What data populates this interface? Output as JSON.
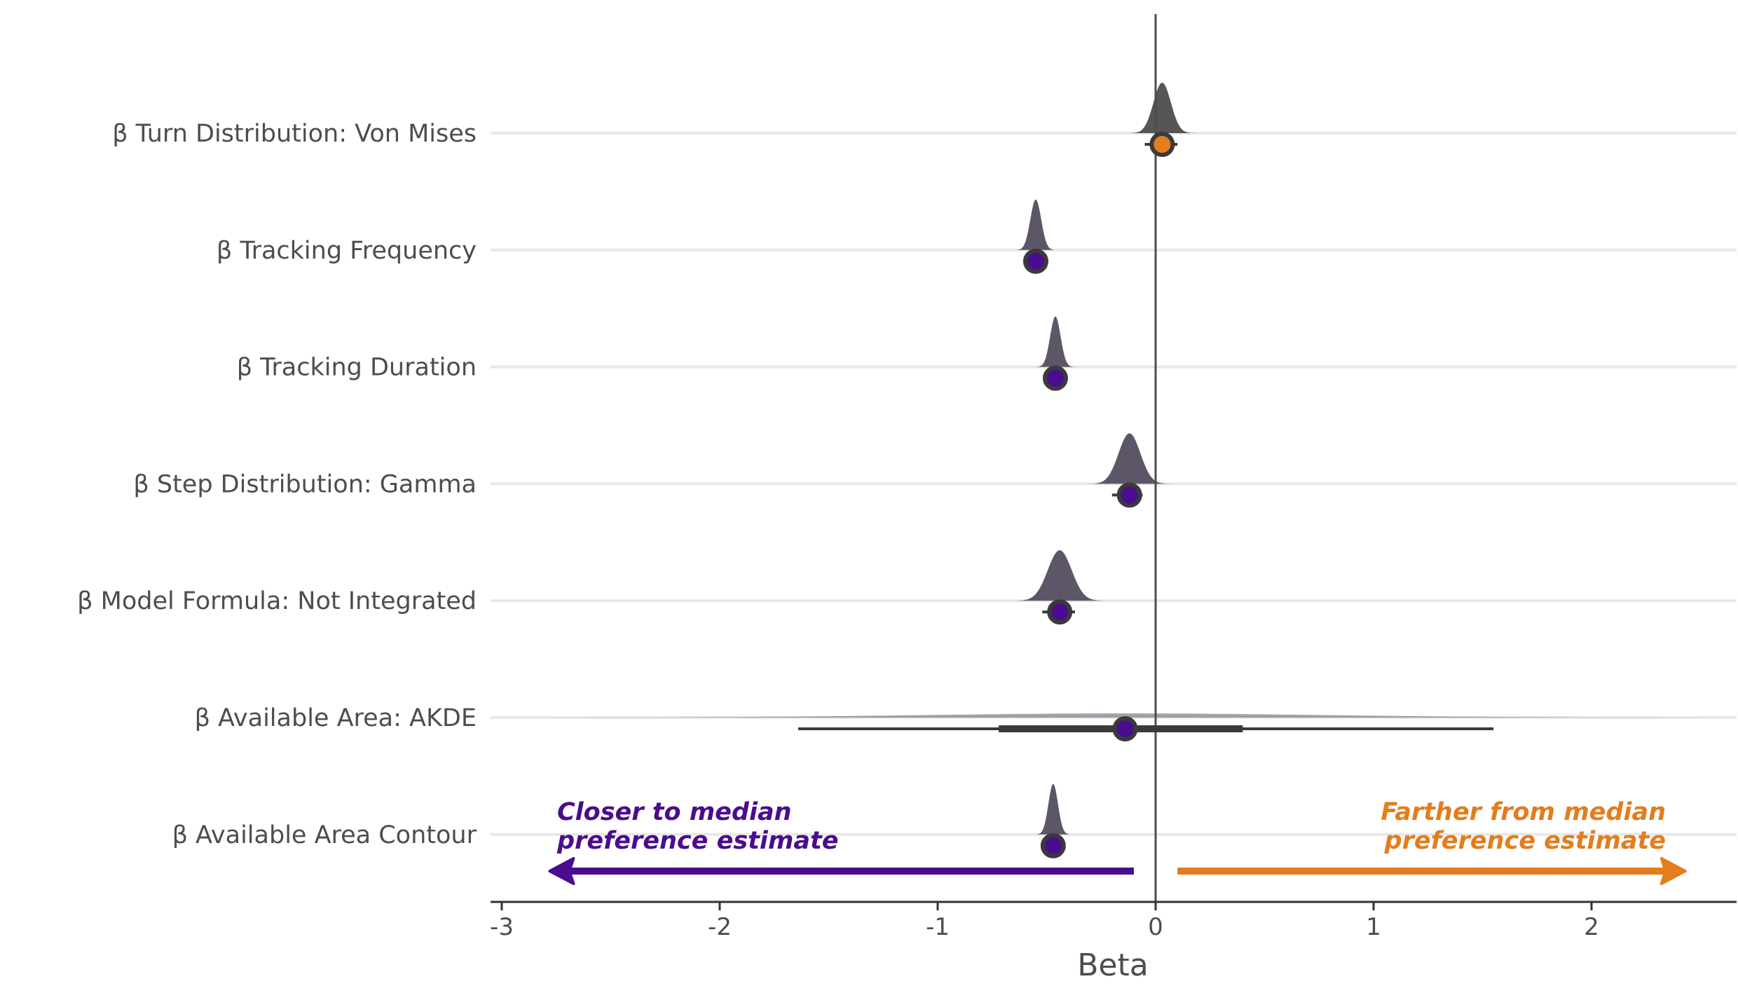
{
  "chart_data": {
    "type": "halfeye",
    "xlabel": "Beta",
    "xlim": [
      -3.03,
      2.7
    ],
    "x_ticks": [
      -3,
      -2,
      -1,
      0,
      1,
      2
    ],
    "x_tick_labels": [
      "-3",
      "-2",
      "-1",
      "0",
      "1",
      "2"
    ],
    "reference_line_x": 0,
    "grid": "horizontal",
    "colors": {
      "closer": "#4b0c8f",
      "farther": "#e37d1d",
      "density": "#5d5668",
      "density_alt": "#565656",
      "interval": "#3a3a3a",
      "text": "#4d4d4d",
      "grid": "#e8e8e8"
    },
    "series": [
      {
        "label": "β Turn Distribution: Von Mises",
        "median": 0.03,
        "ci66": [
          -0.02,
          0.07
        ],
        "ci95": [
          -0.05,
          0.1
        ],
        "density_sd": 0.04,
        "density_peak": 0.03,
        "direction": "farther"
      },
      {
        "label": "β Tracking Frequency",
        "median": -0.55,
        "ci66": [
          -0.57,
          -0.53
        ],
        "ci95": [
          -0.58,
          -0.52
        ],
        "density_sd": 0.025,
        "density_peak": -0.55,
        "direction": "closer"
      },
      {
        "label": "β Tracking Duration",
        "median": -0.46,
        "ci66": [
          -0.48,
          -0.44
        ],
        "ci95": [
          -0.49,
          -0.43
        ],
        "density_sd": 0.024,
        "density_peak": -0.46,
        "direction": "closer"
      },
      {
        "label": "β Step Distribution: Gamma",
        "median": -0.12,
        "ci66": [
          -0.16,
          -0.09
        ],
        "ci95": [
          -0.2,
          -0.06
        ],
        "density_sd": 0.05,
        "density_peak": -0.12,
        "direction": "closer"
      },
      {
        "label": "β Model Formula: Not Integrated",
        "median": -0.44,
        "ci66": [
          -0.48,
          -0.4
        ],
        "ci95": [
          -0.52,
          -0.37
        ],
        "density_sd": 0.055,
        "density_peak": -0.44,
        "direction": "closer"
      },
      {
        "label": "β Available Area: AKDE",
        "median": -0.14,
        "ci66": [
          -0.72,
          0.4
        ],
        "ci95": [
          -1.64,
          1.55
        ],
        "density_sd": 0.9,
        "density_peak": -0.14,
        "direction": "closer"
      },
      {
        "label": "β Available Area Contour",
        "median": -0.47,
        "ci66": [
          -0.48,
          -0.45
        ],
        "ci95": [
          -0.49,
          -0.44
        ],
        "density_sd": 0.022,
        "density_peak": -0.47,
        "direction": "closer"
      }
    ],
    "annotations": {
      "left": {
        "line1": "Closer to median",
        "line2": "preference estimate",
        "arrow_from": -0.1,
        "arrow_to": -2.78
      },
      "right": {
        "line1": "Farther from median",
        "line2": "preference estimate",
        "arrow_from": 0.1,
        "arrow_to": 2.43
      }
    }
  }
}
